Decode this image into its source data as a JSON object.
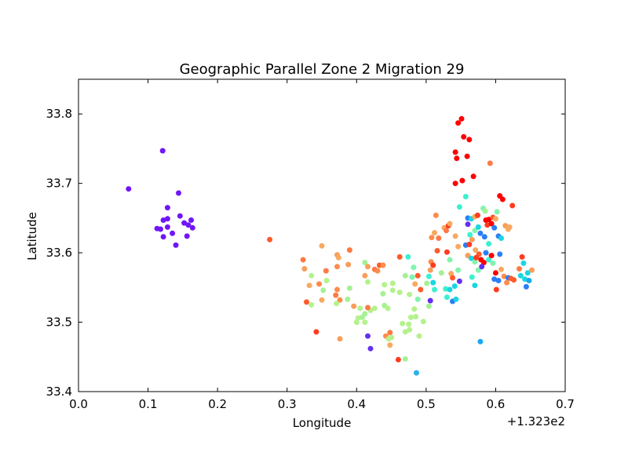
{
  "chart_data": {
    "type": "scatter",
    "title": "Geographic Parallel Zone 2 Migration 29",
    "xlabel": "Longitude",
    "ylabel": "Latitude",
    "x_offset_label": "+1.323e2",
    "xlim": [
      0.0,
      0.7
    ],
    "ylim": [
      33.4,
      33.85
    ],
    "x_ticks": [
      0.0,
      0.1,
      0.2,
      0.3,
      0.4,
      0.5,
      0.6,
      0.7
    ],
    "x_tick_labels": [
      "0.0",
      "0.1",
      "0.2",
      "0.3",
      "0.4",
      "0.5",
      "0.6",
      "0.7"
    ],
    "y_ticks": [
      33.4,
      33.5,
      33.6,
      33.7,
      33.8
    ],
    "y_tick_labels": [
      "33.4",
      "33.5",
      "33.6",
      "33.7",
      "33.8"
    ],
    "grid": false,
    "legend": "none",
    "points": [
      {
        "x": 0.072,
        "y": 33.692,
        "color": "#7016f7"
      },
      {
        "x": 0.121,
        "y": 33.747,
        "color": "#7016f7"
      },
      {
        "x": 0.144,
        "y": 33.686,
        "color": "#7016f7"
      },
      {
        "x": 0.128,
        "y": 33.665,
        "color": "#7016f7"
      },
      {
        "x": 0.146,
        "y": 33.653,
        "color": "#7016f7"
      },
      {
        "x": 0.128,
        "y": 33.649,
        "color": "#7016f7"
      },
      {
        "x": 0.122,
        "y": 33.647,
        "color": "#7016f7"
      },
      {
        "x": 0.162,
        "y": 33.647,
        "color": "#7016f7"
      },
      {
        "x": 0.152,
        "y": 33.643,
        "color": "#7016f7"
      },
      {
        "x": 0.158,
        "y": 33.64,
        "color": "#7016f7"
      },
      {
        "x": 0.113,
        "y": 33.635,
        "color": "#7016f7"
      },
      {
        "x": 0.128,
        "y": 33.637,
        "color": "#7016f7"
      },
      {
        "x": 0.118,
        "y": 33.634,
        "color": "#7016f7"
      },
      {
        "x": 0.164,
        "y": 33.636,
        "color": "#7016f7"
      },
      {
        "x": 0.135,
        "y": 33.628,
        "color": "#7016f7"
      },
      {
        "x": 0.122,
        "y": 33.623,
        "color": "#7016f7"
      },
      {
        "x": 0.156,
        "y": 33.624,
        "color": "#7016f7"
      },
      {
        "x": 0.14,
        "y": 33.611,
        "color": "#7016f7"
      },
      {
        "x": 0.275,
        "y": 33.619,
        "color": "#ff5a2c"
      },
      {
        "x": 0.323,
        "y": 33.59,
        "color": "#ff7a44"
      },
      {
        "x": 0.325,
        "y": 33.577,
        "color": "#f99d5a"
      },
      {
        "x": 0.35,
        "y": 33.61,
        "color": "#f9a95f"
      },
      {
        "x": 0.372,
        "y": 33.597,
        "color": "#f99d5a"
      },
      {
        "x": 0.374,
        "y": 33.593,
        "color": "#f9a95f"
      },
      {
        "x": 0.39,
        "y": 33.604,
        "color": "#ff7a44"
      },
      {
        "x": 0.388,
        "y": 33.583,
        "color": "#f99d5a"
      },
      {
        "x": 0.372,
        "y": 33.58,
        "color": "#ff8b4c"
      },
      {
        "x": 0.356,
        "y": 33.574,
        "color": "#ff7a44"
      },
      {
        "x": 0.335,
        "y": 33.567,
        "color": "#b4f28c"
      },
      {
        "x": 0.357,
        "y": 33.56,
        "color": "#b4f28c"
      },
      {
        "x": 0.346,
        "y": 33.555,
        "color": "#ff8b4c"
      },
      {
        "x": 0.332,
        "y": 33.553,
        "color": "#f9a95f"
      },
      {
        "x": 0.352,
        "y": 33.546,
        "color": "#a5f195"
      },
      {
        "x": 0.372,
        "y": 33.547,
        "color": "#ff8b4c"
      },
      {
        "x": 0.39,
        "y": 33.549,
        "color": "#a5f195"
      },
      {
        "x": 0.37,
        "y": 33.539,
        "color": "#ff7a44"
      },
      {
        "x": 0.376,
        "y": 33.532,
        "color": "#ff8b4c"
      },
      {
        "x": 0.387,
        "y": 33.533,
        "color": "#a5f195"
      },
      {
        "x": 0.35,
        "y": 33.532,
        "color": "#f9a95f"
      },
      {
        "x": 0.371,
        "y": 33.527,
        "color": "#b4f28c"
      },
      {
        "x": 0.328,
        "y": 33.529,
        "color": "#ff5a2c"
      },
      {
        "x": 0.335,
        "y": 33.525,
        "color": "#b4f28c"
      },
      {
        "x": 0.342,
        "y": 33.486,
        "color": "#ff3b1f"
      },
      {
        "x": 0.376,
        "y": 33.476,
        "color": "#f99d5a"
      },
      {
        "x": 0.412,
        "y": 33.586,
        "color": "#a5f195"
      },
      {
        "x": 0.416,
        "y": 33.58,
        "color": "#f99d5a"
      },
      {
        "x": 0.426,
        "y": 33.576,
        "color": "#ff7a44"
      },
      {
        "x": 0.433,
        "y": 33.582,
        "color": "#ff5a2c"
      },
      {
        "x": 0.438,
        "y": 33.582,
        "color": "#ff8b4c"
      },
      {
        "x": 0.43,
        "y": 33.574,
        "color": "#ff8b4c"
      },
      {
        "x": 0.412,
        "y": 33.567,
        "color": "#f99d5a"
      },
      {
        "x": 0.416,
        "y": 33.558,
        "color": "#b4f28c"
      },
      {
        "x": 0.44,
        "y": 33.554,
        "color": "#b4f28c"
      },
      {
        "x": 0.452,
        "y": 33.556,
        "color": "#b4f28c"
      },
      {
        "x": 0.438,
        "y": 33.541,
        "color": "#a5f195"
      },
      {
        "x": 0.452,
        "y": 33.546,
        "color": "#b4f28c"
      },
      {
        "x": 0.462,
        "y": 33.543,
        "color": "#b4f28c"
      },
      {
        "x": 0.396,
        "y": 33.523,
        "color": "#f99d5a"
      },
      {
        "x": 0.405,
        "y": 33.52,
        "color": "#b4f28c"
      },
      {
        "x": 0.412,
        "y": 33.512,
        "color": "#a5f195"
      },
      {
        "x": 0.42,
        "y": 33.517,
        "color": "#b4f28c"
      },
      {
        "x": 0.426,
        "y": 33.52,
        "color": "#b4f28c"
      },
      {
        "x": 0.402,
        "y": 33.506,
        "color": "#b4f28c"
      },
      {
        "x": 0.408,
        "y": 33.507,
        "color": "#a5f195"
      },
      {
        "x": 0.4,
        "y": 33.5,
        "color": "#b4f28c"
      },
      {
        "x": 0.412,
        "y": 33.5,
        "color": "#b4f28c"
      },
      {
        "x": 0.416,
        "y": 33.521,
        "color": "#ff7a44"
      },
      {
        "x": 0.44,
        "y": 33.524,
        "color": "#a5f195"
      },
      {
        "x": 0.445,
        "y": 33.52,
        "color": "#b4f28c"
      },
      {
        "x": 0.442,
        "y": 33.48,
        "color": "#ff8b4c"
      },
      {
        "x": 0.448,
        "y": 33.485,
        "color": "#ff7a44"
      },
      {
        "x": 0.446,
        "y": 33.476,
        "color": "#b4f28c"
      },
      {
        "x": 0.45,
        "y": 33.478,
        "color": "#b4f28c"
      },
      {
        "x": 0.448,
        "y": 33.467,
        "color": "#f9a95f"
      },
      {
        "x": 0.416,
        "y": 33.48,
        "color": "#6330f2"
      },
      {
        "x": 0.42,
        "y": 33.462,
        "color": "#6330f2"
      },
      {
        "x": 0.46,
        "y": 33.446,
        "color": "#ff3b1f"
      },
      {
        "x": 0.47,
        "y": 33.447,
        "color": "#a5f195"
      },
      {
        "x": 0.486,
        "y": 33.427,
        "color": "#2db0ee"
      },
      {
        "x": 0.466,
        "y": 33.498,
        "color": "#b4f28c"
      },
      {
        "x": 0.475,
        "y": 33.497,
        "color": "#b4f28c"
      },
      {
        "x": 0.47,
        "y": 33.486,
        "color": "#b4f28c"
      },
      {
        "x": 0.476,
        "y": 33.489,
        "color": "#b4f28c"
      },
      {
        "x": 0.49,
        "y": 33.48,
        "color": "#b4f28c"
      },
      {
        "x": 0.478,
        "y": 33.507,
        "color": "#b4f28c"
      },
      {
        "x": 0.485,
        "y": 33.508,
        "color": "#b4f28c"
      },
      {
        "x": 0.483,
        "y": 33.519,
        "color": "#b4f28c"
      },
      {
        "x": 0.496,
        "y": 33.501,
        "color": "#b4f28c"
      },
      {
        "x": 0.462,
        "y": 33.594,
        "color": "#ff5a2c"
      },
      {
        "x": 0.474,
        "y": 33.594,
        "color": "#3cf0cf"
      },
      {
        "x": 0.482,
        "y": 33.579,
        "color": "#80f4ac"
      },
      {
        "x": 0.488,
        "y": 33.567,
        "color": "#ff5a2c"
      },
      {
        "x": 0.47,
        "y": 33.567,
        "color": "#a5f195"
      },
      {
        "x": 0.48,
        "y": 33.565,
        "color": "#80f4ac"
      },
      {
        "x": 0.484,
        "y": 33.555,
        "color": "#f9a95f"
      },
      {
        "x": 0.476,
        "y": 33.54,
        "color": "#b4f28c"
      },
      {
        "x": 0.492,
        "y": 33.547,
        "color": "#ff5a2c"
      },
      {
        "x": 0.488,
        "y": 33.533,
        "color": "#80f4ac"
      },
      {
        "x": 0.501,
        "y": 33.556,
        "color": "#a5f195"
      },
      {
        "x": 0.504,
        "y": 33.566,
        "color": "#3cf0cf"
      },
      {
        "x": 0.51,
        "y": 33.557,
        "color": "#19d6e0"
      },
      {
        "x": 0.512,
        "y": 33.547,
        "color": "#3cf0cf"
      },
      {
        "x": 0.506,
        "y": 33.531,
        "color": "#6330f2"
      },
      {
        "x": 0.504,
        "y": 33.523,
        "color": "#a5f195"
      },
      {
        "x": 0.506,
        "y": 33.575,
        "color": "#f99d5a"
      },
      {
        "x": 0.507,
        "y": 33.587,
        "color": "#ff8b4c"
      },
      {
        "x": 0.51,
        "y": 33.582,
        "color": "#ff3b1f"
      },
      {
        "x": 0.516,
        "y": 33.603,
        "color": "#ff5a2c"
      },
      {
        "x": 0.508,
        "y": 33.622,
        "color": "#ff8b4c"
      },
      {
        "x": 0.512,
        "y": 33.629,
        "color": "#f9a95f"
      },
      {
        "x": 0.514,
        "y": 33.654,
        "color": "#ff8b4c"
      },
      {
        "x": 0.518,
        "y": 33.621,
        "color": "#ff7a44"
      },
      {
        "x": 0.522,
        "y": 33.571,
        "color": "#a5f195"
      },
      {
        "x": 0.526,
        "y": 33.636,
        "color": "#f9a95f"
      },
      {
        "x": 0.529,
        "y": 33.632,
        "color": "#ff7a44"
      },
      {
        "x": 0.532,
        "y": 33.639,
        "color": "#ff3b1f"
      },
      {
        "x": 0.534,
        "y": 33.642,
        "color": "#f9a95f"
      },
      {
        "x": 0.53,
        "y": 33.601,
        "color": "#ff3b1f"
      },
      {
        "x": 0.534,
        "y": 33.59,
        "color": "#80f4ac"
      },
      {
        "x": 0.536,
        "y": 33.57,
        "color": "#f9a95f"
      },
      {
        "x": 0.538,
        "y": 33.564,
        "color": "#ff5a2c"
      },
      {
        "x": 0.528,
        "y": 33.548,
        "color": "#3cf0cf"
      },
      {
        "x": 0.534,
        "y": 33.547,
        "color": "#19d6e0"
      },
      {
        "x": 0.53,
        "y": 33.536,
        "color": "#3cf0cf"
      },
      {
        "x": 0.538,
        "y": 33.53,
        "color": "#2b7ef6"
      },
      {
        "x": 0.543,
        "y": 33.533,
        "color": "#19d6e0"
      },
      {
        "x": 0.541,
        "y": 33.552,
        "color": "#19d6e0"
      },
      {
        "x": 0.546,
        "y": 33.575,
        "color": "#80f4ac"
      },
      {
        "x": 0.548,
        "y": 33.559,
        "color": "#6330f2"
      },
      {
        "x": 0.542,
        "y": 33.624,
        "color": "#f9a95f"
      },
      {
        "x": 0.546,
        "y": 33.609,
        "color": "#f9a95f"
      },
      {
        "x": 0.542,
        "y": 33.745,
        "color": "#ff0000"
      },
      {
        "x": 0.544,
        "y": 33.736,
        "color": "#ff0000"
      },
      {
        "x": 0.546,
        "y": 33.787,
        "color": "#ff0000"
      },
      {
        "x": 0.551,
        "y": 33.793,
        "color": "#ff0000"
      },
      {
        "x": 0.554,
        "y": 33.767,
        "color": "#ff0000"
      },
      {
        "x": 0.562,
        "y": 33.763,
        "color": "#ff0000"
      },
      {
        "x": 0.559,
        "y": 33.739,
        "color": "#ff0000"
      },
      {
        "x": 0.552,
        "y": 33.704,
        "color": "#ff0000"
      },
      {
        "x": 0.542,
        "y": 33.7,
        "color": "#ff0000"
      },
      {
        "x": 0.568,
        "y": 33.71,
        "color": "#ff0000"
      },
      {
        "x": 0.548,
        "y": 33.666,
        "color": "#3cf0cf"
      },
      {
        "x": 0.557,
        "y": 33.681,
        "color": "#3cf0cf"
      },
      {
        "x": 0.592,
        "y": 33.729,
        "color": "#ff7a44"
      },
      {
        "x": 0.56,
        "y": 33.65,
        "color": "#2b7ef6"
      },
      {
        "x": 0.565,
        "y": 33.649,
        "color": "#19d6e0"
      },
      {
        "x": 0.57,
        "y": 33.652,
        "color": "#f9a95f"
      },
      {
        "x": 0.574,
        "y": 33.654,
        "color": "#ff3b1f"
      },
      {
        "x": 0.56,
        "y": 33.641,
        "color": "#6330f2"
      },
      {
        "x": 0.563,
        "y": 33.626,
        "color": "#3cf0cf"
      },
      {
        "x": 0.57,
        "y": 33.632,
        "color": "#80f4ac"
      },
      {
        "x": 0.575,
        "y": 33.637,
        "color": "#19d6e0"
      },
      {
        "x": 0.578,
        "y": 33.628,
        "color": "#2b7ef6"
      },
      {
        "x": 0.557,
        "y": 33.611,
        "color": "#2b7ef6"
      },
      {
        "x": 0.562,
        "y": 33.612,
        "color": "#ff3b1f"
      },
      {
        "x": 0.566,
        "y": 33.619,
        "color": "#f99d5a"
      },
      {
        "x": 0.571,
        "y": 33.604,
        "color": "#f9a95f"
      },
      {
        "x": 0.576,
        "y": 33.598,
        "color": "#ff5a2c"
      },
      {
        "x": 0.56,
        "y": 33.596,
        "color": "#f99d5a"
      },
      {
        "x": 0.565,
        "y": 33.592,
        "color": "#19d6e0"
      },
      {
        "x": 0.57,
        "y": 33.587,
        "color": "#80f4ac"
      },
      {
        "x": 0.572,
        "y": 33.593,
        "color": "#ff3b1f"
      },
      {
        "x": 0.579,
        "y": 33.59,
        "color": "#ff0000"
      },
      {
        "x": 0.583,
        "y": 33.586,
        "color": "#ff0000"
      },
      {
        "x": 0.575,
        "y": 33.575,
        "color": "#80f4ac"
      },
      {
        "x": 0.58,
        "y": 33.58,
        "color": "#6330f2"
      },
      {
        "x": 0.566,
        "y": 33.565,
        "color": "#3cf0cf"
      },
      {
        "x": 0.57,
        "y": 33.553,
        "color": "#19d6e0"
      },
      {
        "x": 0.578,
        "y": 33.472,
        "color": "#19a9ee"
      },
      {
        "x": 0.582,
        "y": 33.664,
        "color": "#80f4ac"
      },
      {
        "x": 0.585,
        "y": 33.66,
        "color": "#a5f195"
      },
      {
        "x": 0.586,
        "y": 33.647,
        "color": "#ff0000"
      },
      {
        "x": 0.588,
        "y": 33.64,
        "color": "#ff3b1f"
      },
      {
        "x": 0.59,
        "y": 33.648,
        "color": "#ff0000"
      },
      {
        "x": 0.594,
        "y": 33.642,
        "color": "#ff0000"
      },
      {
        "x": 0.596,
        "y": 33.651,
        "color": "#ff5a2c"
      },
      {
        "x": 0.6,
        "y": 33.649,
        "color": "#f9a95f"
      },
      {
        "x": 0.602,
        "y": 33.659,
        "color": "#80f4ac"
      },
      {
        "x": 0.598,
        "y": 33.636,
        "color": "#2b7ef6"
      },
      {
        "x": 0.584,
        "y": 33.623,
        "color": "#2b7ef6"
      },
      {
        "x": 0.59,
        "y": 33.613,
        "color": "#3cf0cf"
      },
      {
        "x": 0.586,
        "y": 33.6,
        "color": "#2b7ef6"
      },
      {
        "x": 0.59,
        "y": 33.59,
        "color": "#3cf0cf"
      },
      {
        "x": 0.594,
        "y": 33.596,
        "color": "#ff0000"
      },
      {
        "x": 0.596,
        "y": 33.585,
        "color": "#80f4ac"
      },
      {
        "x": 0.6,
        "y": 33.571,
        "color": "#ff0000"
      },
      {
        "x": 0.598,
        "y": 33.562,
        "color": "#2b7ef6"
      },
      {
        "x": 0.601,
        "y": 33.547,
        "color": "#ff3b1f"
      },
      {
        "x": 0.604,
        "y": 33.56,
        "color": "#2b7ef6"
      },
      {
        "x": 0.606,
        "y": 33.682,
        "color": "#ff0000"
      },
      {
        "x": 0.61,
        "y": 33.677,
        "color": "#ff0000"
      },
      {
        "x": 0.604,
        "y": 33.624,
        "color": "#2b7ef6"
      },
      {
        "x": 0.608,
        "y": 33.621,
        "color": "#19d6e0"
      },
      {
        "x": 0.606,
        "y": 33.598,
        "color": "#2b7ef6"
      },
      {
        "x": 0.608,
        "y": 33.576,
        "color": "#f9a95f"
      },
      {
        "x": 0.612,
        "y": 33.566,
        "color": "#ff8b4c"
      },
      {
        "x": 0.614,
        "y": 33.639,
        "color": "#f99d5a"
      },
      {
        "x": 0.618,
        "y": 33.634,
        "color": "#f9a95f"
      },
      {
        "x": 0.62,
        "y": 33.637,
        "color": "#f9a95f"
      },
      {
        "x": 0.624,
        "y": 33.668,
        "color": "#ff3b1f"
      },
      {
        "x": 0.618,
        "y": 33.564,
        "color": "#2b7ef6"
      },
      {
        "x": 0.622,
        "y": 33.563,
        "color": "#ff5a2c"
      },
      {
        "x": 0.616,
        "y": 33.557,
        "color": "#ff8b4c"
      },
      {
        "x": 0.626,
        "y": 33.561,
        "color": "#ff5a2c"
      },
      {
        "x": 0.634,
        "y": 33.577,
        "color": "#ff7a44"
      },
      {
        "x": 0.638,
        "y": 33.594,
        "color": "#ff3b1f"
      },
      {
        "x": 0.64,
        "y": 33.585,
        "color": "#19d6e0"
      },
      {
        "x": 0.636,
        "y": 33.567,
        "color": "#19d6e0"
      },
      {
        "x": 0.642,
        "y": 33.562,
        "color": "#19d6e0"
      },
      {
        "x": 0.646,
        "y": 33.571,
        "color": "#19d6e0"
      },
      {
        "x": 0.644,
        "y": 33.551,
        "color": "#2b7ef6"
      },
      {
        "x": 0.648,
        "y": 33.56,
        "color": "#19a9ee"
      },
      {
        "x": 0.652,
        "y": 33.575,
        "color": "#f99d5a"
      }
    ]
  }
}
